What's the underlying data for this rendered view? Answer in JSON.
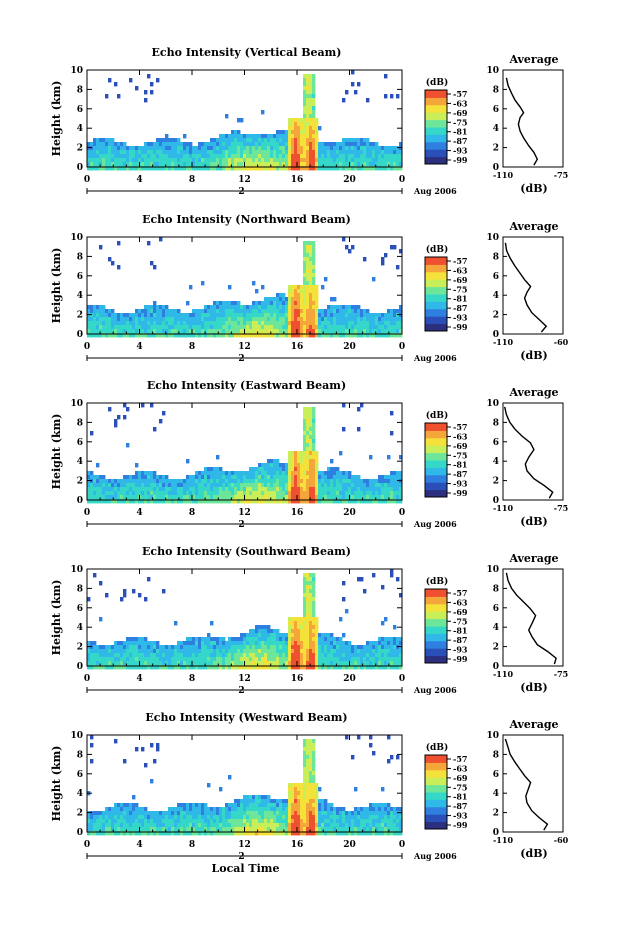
{
  "figure": {
    "background": "#ffffff",
    "colormap": [
      "#2b2f7e",
      "#2a4fb8",
      "#2f7fe0",
      "#2fb8e8",
      "#35d8c8",
      "#6ee69a",
      "#c8ee5a",
      "#f4e23a",
      "#f4a63a",
      "#ee5030"
    ],
    "colorbar_label": "(dB)",
    "colorbar_ticks": [
      "-57",
      "-63",
      "-69",
      "-75",
      "-81",
      "-87",
      "-93",
      "-99"
    ],
    "xlabel": "Local Time",
    "date_label": "Aug 2006",
    "day_label": "2",
    "average_title": "Average",
    "average_xlabel": "(dB)"
  },
  "chart_data": [
    {
      "type": "heatmap",
      "title": "Echo Intensity (Vertical Beam)",
      "ylabel": "Height (km)",
      "xlim": [
        0,
        24
      ],
      "ylim": [
        0,
        10
      ],
      "xticks": [
        "0",
        "4",
        "8",
        "12",
        "16",
        "20",
        "0"
      ],
      "yticks": [
        "0",
        "2",
        "4",
        "6",
        "8",
        "10"
      ],
      "intensity_range_dB": [
        -99,
        -57
      ],
      "average_profile": {
        "type": "line",
        "xlim": [
          -110,
          -75
        ],
        "xticks": [
          "-110",
          "-75"
        ],
        "yticks": [
          "0",
          "2",
          "4",
          "6",
          "8",
          "10"
        ],
        "x": [
          -92,
          -90,
          -92,
          -95,
          -98,
          -100,
          -101,
          -100,
          -98,
          -100,
          -103,
          -105,
          -107,
          -108
        ],
        "y": [
          0.2,
          0.8,
          1.5,
          2.2,
          3,
          3.7,
          4.4,
          5.1,
          5.6,
          6.2,
          6.9,
          7.6,
          8.4,
          9.2
        ]
      }
    },
    {
      "type": "heatmap",
      "title": "Echo Intensity (Northward Beam)",
      "ylabel": "Height (km)",
      "xlim": [
        0,
        24
      ],
      "ylim": [
        0,
        10
      ],
      "xticks": [
        "0",
        "4",
        "8",
        "12",
        "16",
        "20",
        "0"
      ],
      "yticks": [
        "0",
        "2",
        "4",
        "6",
        "8",
        "10"
      ],
      "intensity_range_dB": [
        -99,
        -57
      ],
      "average_profile": {
        "type": "line",
        "xlim": [
          -110,
          -60
        ],
        "xticks": [
          "-110",
          "-60"
        ],
        "yticks": [
          "0",
          "2",
          "4",
          "6",
          "8",
          "10"
        ],
        "x": [
          -78,
          -74,
          -80,
          -86,
          -90,
          -92,
          -90,
          -87,
          -92,
          -96,
          -100,
          -104,
          -107,
          -108
        ],
        "y": [
          0.2,
          0.8,
          1.5,
          2.2,
          3,
          3.7,
          4.3,
          4.9,
          5.6,
          6.3,
          7,
          7.8,
          8.6,
          9.4
        ]
      }
    },
    {
      "type": "heatmap",
      "title": "Echo Intensity (Eastward Beam)",
      "ylabel": "Height (km)",
      "xlim": [
        0,
        24
      ],
      "ylim": [
        0,
        10
      ],
      "xticks": [
        "0",
        "4",
        "8",
        "12",
        "16",
        "20",
        "0"
      ],
      "yticks": [
        "0",
        "2",
        "4",
        "6",
        "8",
        "10"
      ],
      "intensity_range_dB": [
        -99,
        -57
      ],
      "average_profile": {
        "type": "line",
        "xlim": [
          -110,
          -75
        ],
        "xticks": [
          "-110",
          "-75"
        ],
        "yticks": [
          "0",
          "2",
          "4",
          "6",
          "8",
          "10"
        ],
        "x": [
          -83,
          -81,
          -86,
          -92,
          -96,
          -97,
          -95,
          -92,
          -94,
          -99,
          -103,
          -106,
          -108,
          -109
        ],
        "y": [
          0.2,
          0.8,
          1.5,
          2.2,
          3,
          3.7,
          4.4,
          5.2,
          5.9,
          6.6,
          7.3,
          8,
          8.8,
          9.6
        ]
      }
    },
    {
      "type": "heatmap",
      "title": "Echo Intensity (Southward Beam)",
      "ylabel": "Height (km)",
      "xlim": [
        0,
        24
      ],
      "ylim": [
        0,
        10
      ],
      "xticks": [
        "0",
        "4",
        "8",
        "12",
        "16",
        "20",
        "0"
      ],
      "yticks": [
        "0",
        "2",
        "4",
        "6",
        "8",
        "10"
      ],
      "intensity_range_dB": [
        -99,
        -57
      ],
      "average_profile": {
        "type": "line",
        "xlim": [
          -110,
          -75
        ],
        "xticks": [
          "-110",
          "-75"
        ],
        "yticks": [
          "0",
          "2",
          "4",
          "6",
          "8",
          "10"
        ],
        "x": [
          -80,
          -79,
          -84,
          -90,
          -93,
          -95,
          -93,
          -91,
          -94,
          -98,
          -102,
          -105,
          -107,
          -108
        ],
        "y": [
          0.2,
          0.8,
          1.5,
          2.2,
          3,
          3.7,
          4.4,
          5.2,
          5.9,
          6.6,
          7.3,
          8,
          8.8,
          9.6
        ]
      }
    },
    {
      "type": "heatmap",
      "title": "Echo Intensity (Westward Beam)",
      "ylabel": "Height (km)",
      "xlim": [
        0,
        24
      ],
      "ylim": [
        0,
        10
      ],
      "xticks": [
        "0",
        "4",
        "8",
        "12",
        "16",
        "20",
        "0"
      ],
      "yticks": [
        "0",
        "2",
        "4",
        "6",
        "8",
        "10"
      ],
      "intensity_range_dB": [
        -99,
        -57
      ],
      "average_profile": {
        "type": "line",
        "xlim": [
          -110,
          -60
        ],
        "xticks": [
          "-110",
          "-60"
        ],
        "yticks": [
          "0",
          "2",
          "4",
          "6",
          "8",
          "10"
        ],
        "x": [
          -76,
          -73,
          -80,
          -86,
          -90,
          -91,
          -89,
          -87,
          -92,
          -96,
          -100,
          -104,
          -106,
          -108
        ],
        "y": [
          0.2,
          0.8,
          1.5,
          2.2,
          3,
          3.7,
          4.4,
          5.1,
          5.8,
          6.5,
          7.2,
          8,
          8.8,
          9.6
        ]
      }
    }
  ]
}
